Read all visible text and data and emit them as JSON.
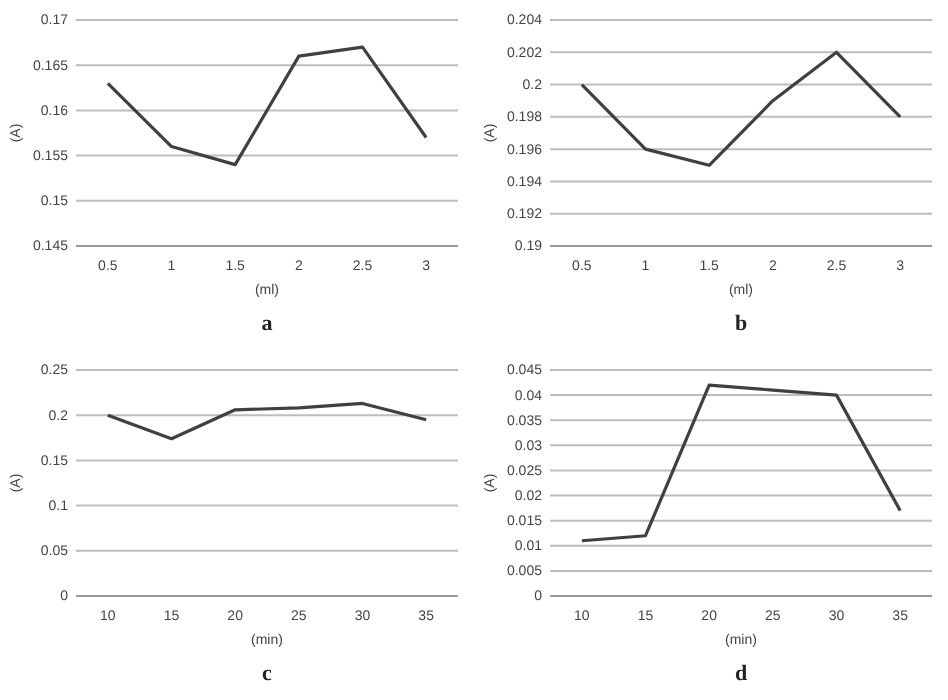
{
  "chart_data": [
    {
      "type": "line",
      "categories": [
        "0.5",
        "1",
        "1.5",
        "2",
        "2.5",
        "3"
      ],
      "values": [
        0.163,
        0.156,
        0.154,
        0.166,
        0.167,
        0.157
      ],
      "color": "#404040",
      "ylim": [
        0.145,
        0.17
      ],
      "yticks": [
        0.145,
        0.15,
        0.155,
        0.16,
        0.165,
        0.17
      ],
      "xlabel": "(ml)",
      "ylabel": "(A)",
      "annotations": [
        "a"
      ],
      "grid": "y",
      "marker": "none"
    },
    {
      "type": "line",
      "categories": [
        "0.5",
        "1",
        "1.5",
        "2",
        "2.5",
        "3"
      ],
      "values": [
        0.2,
        0.196,
        0.195,
        0.199,
        0.202,
        0.198
      ],
      "color": "#404040",
      "ylim": [
        0.19,
        0.204
      ],
      "yticks": [
        0.19,
        0.192,
        0.194,
        0.196,
        0.198,
        {
          "value": 0.2,
          "label": "0.2"
        },
        0.202,
        0.204
      ],
      "xlabel": "(ml)",
      "ylabel": "(A)",
      "annotations": [
        "b"
      ],
      "grid": "y",
      "marker": "none"
    },
    {
      "type": "line",
      "categories": [
        "10",
        "15",
        "20",
        "25",
        "30",
        "35"
      ],
      "values": [
        0.2,
        0.174,
        0.206,
        0.208,
        0.213,
        0.195
      ],
      "color": "#404040",
      "ylim": [
        0,
        0.25
      ],
      "yticks": [
        0,
        0.05,
        0.1,
        0.15,
        {
          "value": 0.2,
          "label": "0.2"
        },
        0.25
      ],
      "xlabel": "(min)",
      "ylabel": "(A)",
      "annotations": [
        "c"
      ],
      "grid": "y",
      "marker": "none"
    },
    {
      "type": "line",
      "categories": [
        "10",
        "15",
        "20",
        "25",
        "30",
        "35"
      ],
      "values": [
        0.011,
        0.012,
        0.042,
        0.041,
        0.04,
        0.017
      ],
      "color": "#404040",
      "ylim": [
        0,
        0.045
      ],
      "yticks": [
        0,
        0.005,
        {
          "value": 0.01,
          "label": "0.01"
        },
        0.015,
        {
          "value": 0.02,
          "label": "0.02"
        },
        0.025,
        {
          "value": 0.03,
          "label": "0.03"
        },
        0.035,
        {
          "value": 0.04,
          "label": "0.04"
        },
        0.045
      ],
      "xlabel": "(min)",
      "ylabel": "(A)",
      "annotations": [
        "d"
      ],
      "grid": "y",
      "marker": "none"
    }
  ]
}
